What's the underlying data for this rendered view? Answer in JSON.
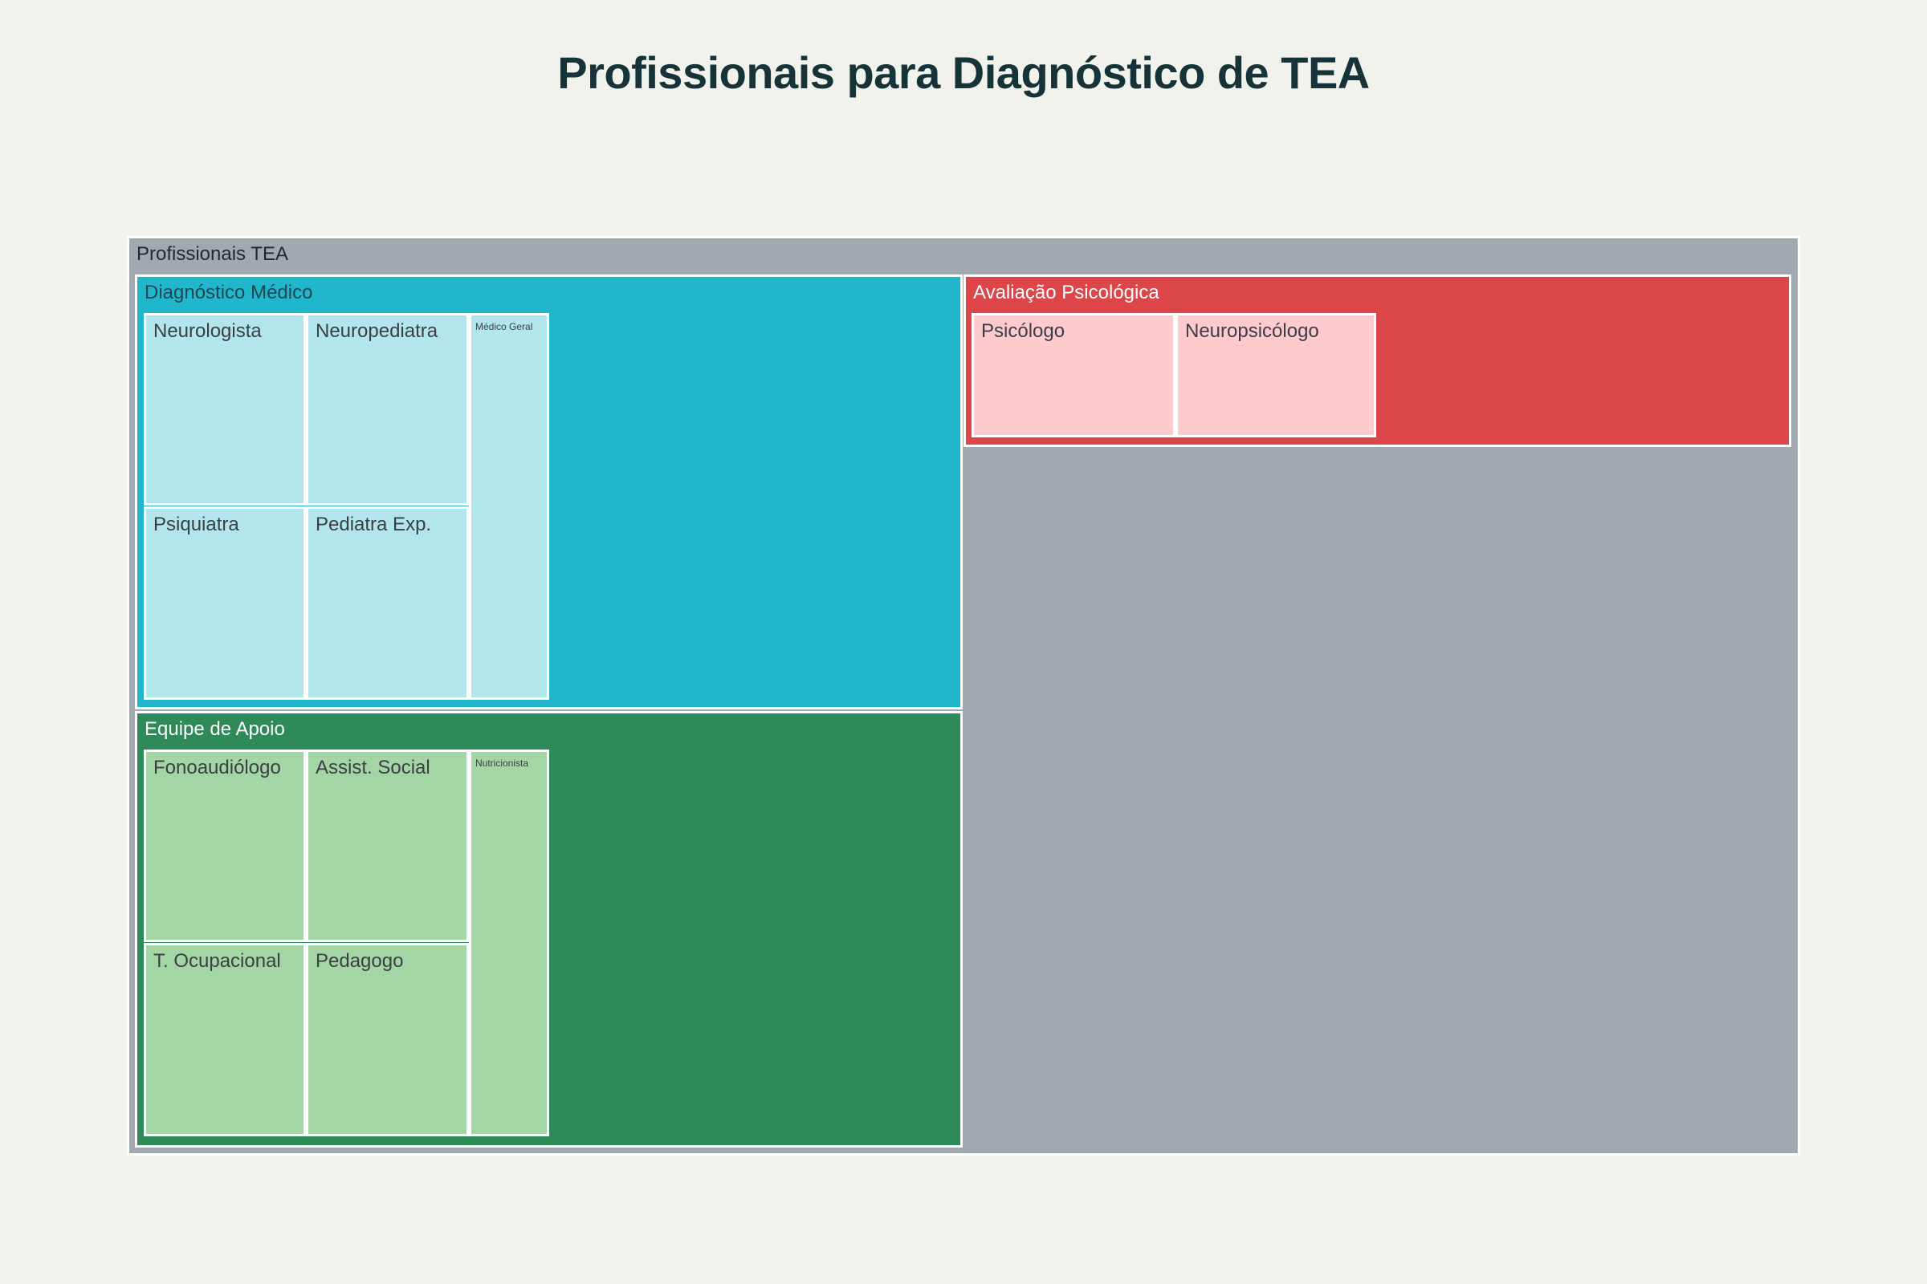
{
  "chart_data": {
    "type": "treemap",
    "title": "Profissionais para Diagnóstico de TEA",
    "root": {
      "label": "Profissionais TEA",
      "color": "#a1a8b0",
      "children": [
        {
          "label": "Diagnóstico Médico",
          "color": "#20b7cd",
          "leaf_color": "#b2e5ec",
          "children": [
            {
              "label": "Neurologista",
              "value": 1
            },
            {
              "label": "Neuropediatra",
              "value": 1
            },
            {
              "label": "Psiquiatra",
              "value": 1
            },
            {
              "label": "Pediatra Exp.",
              "value": 1
            },
            {
              "label": "Médico Geral",
              "value": 1
            }
          ]
        },
        {
          "label": "Avaliação Psicológica",
          "color": "#dc4648",
          "leaf_color": "#ffcace",
          "children": [
            {
              "label": "Psicólogo",
              "value": 1
            },
            {
              "label": "Neuropsicólogo",
              "value": 1
            }
          ]
        },
        {
          "label": "Equipe de Apoio",
          "color": "#2e8a58",
          "leaf_color": "#a4d5a4",
          "children": [
            {
              "label": "Fonoaudiólogo",
              "value": 1
            },
            {
              "label": "Assist. Social",
              "value": 1
            },
            {
              "label": "T. Ocupacional",
              "value": 1
            },
            {
              "label": "Pedagogo",
              "value": 1
            },
            {
              "label": "Nutricionista",
              "value": 1
            }
          ]
        }
      ]
    },
    "colors": {
      "background": "#f2f2ec",
      "title": "#16333a",
      "border": "#ffffff",
      "leaf_text": "#3a3f44",
      "root_text": "#1f2a30",
      "group_text_light": "#ffffff",
      "group_text_dark": "#1f4650"
    }
  }
}
